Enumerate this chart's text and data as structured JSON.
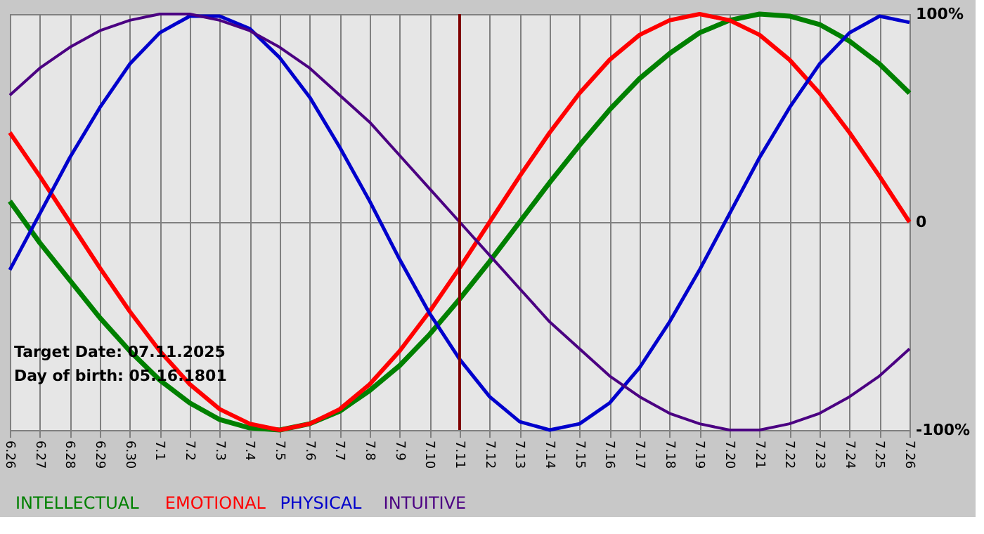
{
  "chart_data": {
    "type": "line",
    "categories": [
      "6.26",
      "6.27",
      "6.28",
      "6.29",
      "6.30",
      "7.1",
      "7.2",
      "7.3",
      "7.4",
      "7.5",
      "7.6",
      "7.7",
      "7.8",
      "7.9",
      "7.10",
      "7.11",
      "7.12",
      "7.13",
      "7.14",
      "7.15",
      "7.16",
      "7.17",
      "7.18",
      "7.19",
      "7.20",
      "7.21",
      "7.22",
      "7.23",
      "7.24",
      "7.25",
      "7.26"
    ],
    "series": [
      {
        "name": "INTELLECTUAL",
        "color": "#008000",
        "values": [
          10,
          -10,
          -28,
          -46,
          -62,
          -76,
          -87,
          -95,
          -99,
          -100,
          -97,
          -91,
          -81,
          -69,
          -54,
          -37,
          -19,
          0,
          19,
          37,
          54,
          69,
          81,
          91,
          97,
          100,
          99,
          95,
          87,
          76,
          62
        ]
      },
      {
        "name": "EMOTIONAL",
        "color": "#ff0000",
        "values": [
          43,
          22,
          0,
          -22,
          -43,
          -62,
          -78,
          -90,
          -97,
          -100,
          -97,
          -90,
          -78,
          -62,
          -43,
          -22,
          0,
          22,
          43,
          62,
          78,
          90,
          97,
          100,
          97,
          90,
          78,
          62,
          43,
          22,
          0
        ]
      },
      {
        "name": "PHYSICAL",
        "color": "#0000cc",
        "values": [
          -23,
          4,
          31,
          55,
          76,
          91,
          99,
          99,
          93,
          79,
          60,
          36,
          10,
          -18,
          -44,
          -66,
          -84,
          -96,
          -100,
          -97,
          -87,
          -70,
          -48,
          -23,
          4,
          31,
          55,
          76,
          91,
          99,
          96
        ]
      },
      {
        "name": "INTUITIVE",
        "color": "#4b0082",
        "values": [
          61,
          74,
          84,
          92,
          97,
          100,
          100,
          97,
          92,
          84,
          74,
          61,
          48,
          32,
          16,
          0,
          -16,
          -32,
          -48,
          -61,
          -74,
          -84,
          -92,
          -97,
          -100,
          -100,
          -97,
          -92,
          -84,
          -74,
          -61
        ]
      }
    ],
    "ylim": [
      -100,
      100
    ],
    "yticks": [
      {
        "value": 100,
        "label": "100%"
      },
      0,
      {
        "value": -100,
        "label": "-100%"
      }
    ],
    "grid": true,
    "legend": "bottom left",
    "line_style": "solid",
    "marker": "none",
    "ref_lines": [
      {
        "axis": "x",
        "value": "7.11",
        "color": "#800000"
      }
    ],
    "annotations": [
      "Target Date: 07.11.2025",
      "Day of birth: 05.16.1801"
    ]
  }
}
